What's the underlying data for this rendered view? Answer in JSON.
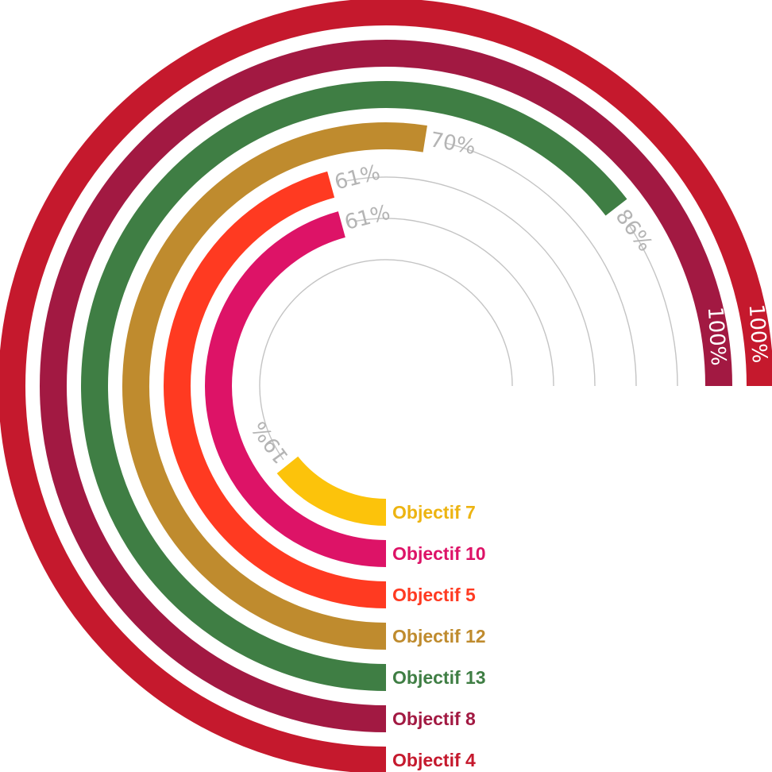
{
  "chart_data": {
    "type": "radial-bar",
    "title": "",
    "value_unit": "%",
    "max_value": 100,
    "series": [
      {
        "name": "Objectif 7",
        "label": "Objectif 7",
        "value": 19,
        "value_label": "19%",
        "color": "#FCC30B",
        "label_color": "#EDB411"
      },
      {
        "name": "Objectif 10",
        "label": "Objectif 10",
        "value": 61,
        "value_label": "61%",
        "color": "#DD1367",
        "label_color": "#DD1367"
      },
      {
        "name": "Objectif 5",
        "label": "Objectif 5",
        "value": 61,
        "value_label": "61%",
        "color": "#FF3A21",
        "label_color": "#FF3A21"
      },
      {
        "name": "Objectif 12",
        "label": "Objectif 12",
        "value": 70,
        "value_label": "70%",
        "color": "#BF8B2E",
        "label_color": "#BF8B2E"
      },
      {
        "name": "Objectif 13",
        "label": "Objectif 13",
        "value": 86,
        "value_label": "86%",
        "color": "#3F7E44",
        "label_color": "#3F7E44"
      },
      {
        "name": "Objectif 8",
        "label": "Objectif 8",
        "value": 100,
        "value_label": "100%",
        "color": "#A21942",
        "label_color": "#A21942"
      },
      {
        "name": "Objectif 4",
        "label": "Objectif 4",
        "value": 100,
        "value_label": "100%",
        "color": "#C5192D",
        "label_color": "#C5192D"
      }
    ],
    "value_label_color": "#b4b4b4",
    "value_label_on_bar_color": "#ffffff"
  }
}
